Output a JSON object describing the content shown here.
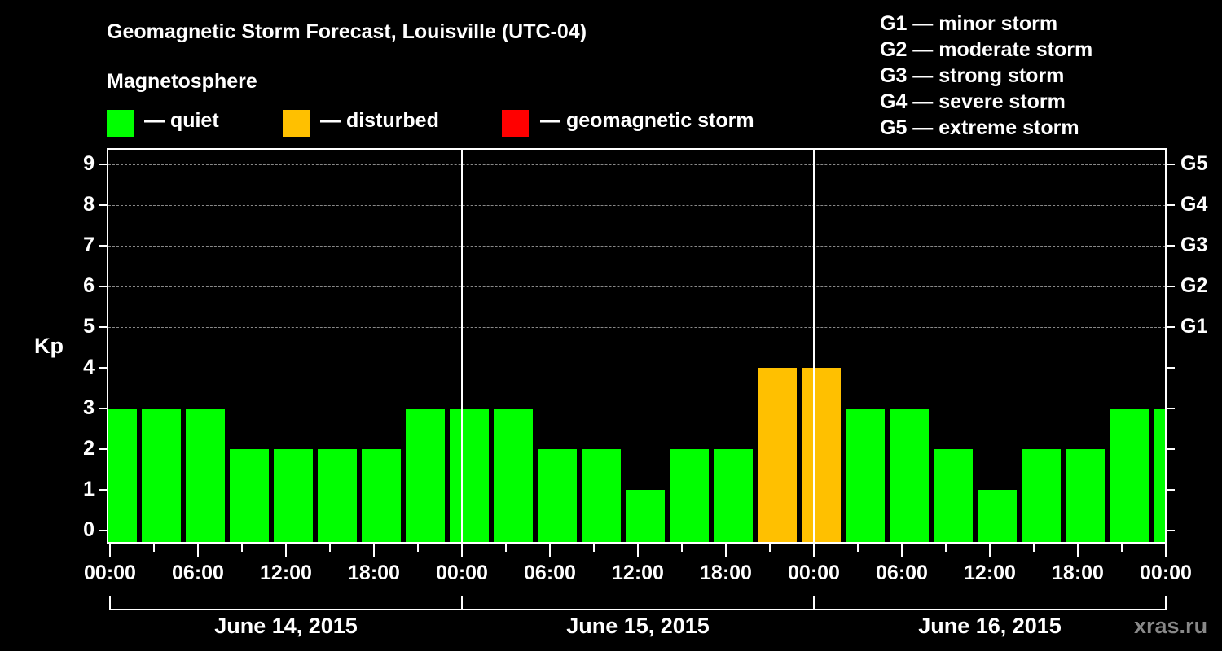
{
  "header": {
    "title": "Geomagnetic Storm Forecast, Louisville (UTC-04)",
    "subtitle": "Magnetosphere"
  },
  "legend": [
    {
      "label": "— quiet",
      "color": "#00ff00"
    },
    {
      "label": "— disturbed",
      "color": "#ffc000"
    },
    {
      "label": "— geomagnetic storm",
      "color": "#ff0000"
    }
  ],
  "g_legend": [
    "G1 — minor storm",
    "G2 — moderate storm",
    "G3 — strong storm",
    "G4 — severe storm",
    "G5 — extreme storm"
  ],
  "axis": {
    "ylabel": "Kp",
    "yticks": [
      "0",
      "1",
      "2",
      "3",
      "4",
      "5",
      "6",
      "7",
      "8",
      "9"
    ],
    "g_ticks": [
      {
        "label": "G1",
        "kp": 5
      },
      {
        "label": "G2",
        "kp": 6
      },
      {
        "label": "G3",
        "kp": 7
      },
      {
        "label": "G4",
        "kp": 8
      },
      {
        "label": "G5",
        "kp": 9
      }
    ],
    "xticks": [
      "00:00",
      "06:00",
      "12:00",
      "18:00",
      "00:00",
      "06:00",
      "12:00",
      "18:00",
      "00:00",
      "06:00",
      "12:00",
      "18:00",
      "00:00"
    ],
    "dates": [
      "June 14, 2015",
      "June 15, 2015",
      "June 16, 2015"
    ]
  },
  "watermark": "xras.ru",
  "chart_data": {
    "type": "bar",
    "title": "Geomagnetic Storm Forecast, Louisville (UTC-04)",
    "subtitle": "Magnetosphere",
    "xlabel": "",
    "ylabel": "Kp",
    "ylim": [
      0,
      9
    ],
    "grid": true,
    "legend_position": "top",
    "legend": [
      "quiet",
      "disturbed",
      "geomagnetic storm"
    ],
    "colors": {
      "quiet": "#00ff00",
      "disturbed": "#ffc000",
      "storm": "#ff0000"
    },
    "categories": [
      "Jun14 00:00",
      "Jun14 03:00",
      "Jun14 06:00",
      "Jun14 09:00",
      "Jun14 12:00",
      "Jun14 15:00",
      "Jun14 18:00",
      "Jun14 21:00",
      "Jun15 00:00",
      "Jun15 03:00",
      "Jun15 06:00",
      "Jun15 09:00",
      "Jun15 12:00",
      "Jun15 15:00",
      "Jun15 18:00",
      "Jun15 21:00",
      "Jun16 00:00",
      "Jun16 03:00",
      "Jun16 06:00",
      "Jun16 09:00",
      "Jun16 12:00",
      "Jun16 15:00",
      "Jun16 18:00",
      "Jun16 21:00",
      "Jun17 00:00"
    ],
    "values": [
      3,
      3,
      3,
      2,
      2,
      2,
      2,
      3,
      3,
      3,
      2,
      2,
      1,
      2,
      2,
      4,
      4,
      3,
      3,
      2,
      1,
      2,
      2,
      3,
      3
    ],
    "status": [
      "quiet",
      "quiet",
      "quiet",
      "quiet",
      "quiet",
      "quiet",
      "quiet",
      "quiet",
      "quiet",
      "quiet",
      "quiet",
      "quiet",
      "quiet",
      "quiet",
      "quiet",
      "disturbed",
      "disturbed",
      "quiet",
      "quiet",
      "quiet",
      "quiet",
      "quiet",
      "quiet",
      "quiet",
      "quiet"
    ],
    "secondary_axis": {
      "G1": 5,
      "G2": 6,
      "G3": 7,
      "G4": 8,
      "G5": 9
    }
  }
}
